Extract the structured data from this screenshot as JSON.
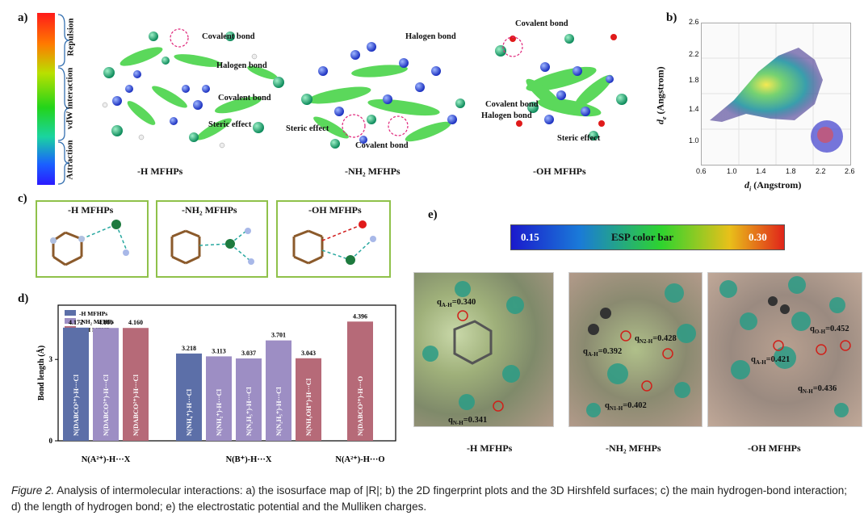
{
  "panel_labels": {
    "a": "a)",
    "b": "b)",
    "c": "c)",
    "d": "d)",
    "e": "e)"
  },
  "panel_a": {
    "colorbar_labels": [
      "Repulsion",
      "vdW interaction",
      "Attraction"
    ],
    "molecules": [
      {
        "title": "-H MFHPs",
        "annotations": [
          "Covalent bond",
          "Halogen bond",
          "Covalent bond",
          "Steric effect"
        ]
      },
      {
        "title": "-NH₂ MFHPs",
        "annotations": [
          "Halogen bond",
          "Steric effect",
          "Covalent bond"
        ]
      },
      {
        "title": "-OH MFHPs",
        "annotations": [
          "Covalent bond",
          "Covalent bond",
          "Halogen bond",
          "Steric effect"
        ]
      }
    ]
  },
  "panel_b": {
    "xlabel": "d",
    "xlabel_sub": "i",
    "xlabel_unit": "(Angstrom)",
    "ylabel": "d",
    "ylabel_sub": "e",
    "ylabel_unit": "(Angstrom)",
    "x_ticks": [
      "0.6",
      "1.0",
      "1.4",
      "1.8",
      "2.2",
      "2.6"
    ],
    "y_ticks": [
      "1.0",
      "1.4",
      "1.8",
      "2.2",
      "2.6"
    ]
  },
  "panel_c": {
    "titles": [
      "-H MFHPs",
      "-NH₂ MFHPs",
      "-OH MFHPs"
    ]
  },
  "chart_data": {
    "type": "bar",
    "ylabel": "Bond length (Å)",
    "ylim": [
      0,
      5
    ],
    "y_ticks": [
      "0",
      "3"
    ],
    "series": [
      {
        "name": "-H MFHPs",
        "color": "#5c6fa8"
      },
      {
        "name": "-NH₂ MFHPs",
        "color": "#9d8ec4"
      },
      {
        "name": "-OH MFHPs",
        "color": "#b66a78"
      }
    ],
    "groups": [
      {
        "label": "N(A²⁺)-H···X",
        "bars": [
          {
            "series": 0,
            "value": 4.172,
            "value_label": "4.172",
            "text": "N(DABCO²⁺)-H···Cl"
          },
          {
            "series": 1,
            "value": 4.16,
            "value_label": "4.160",
            "text": "N(DABCO²⁺)-H···Cl"
          },
          {
            "series": 2,
            "value": 4.16,
            "value_label": "4.160",
            "text": "N(DABCO²⁺)-H···Cl"
          }
        ]
      },
      {
        "label": "N(B⁺)-H···X",
        "bars": [
          {
            "series": 0,
            "value": 3.218,
            "value_label": "3.218",
            "text": "N(NH₄⁺)-H···Cl"
          },
          {
            "series": 1,
            "value": 3.113,
            "value_label": "3.113",
            "text": "N(NH₂⁺)-H···Cl"
          },
          {
            "series": 1,
            "value": 3.037,
            "value_label": "3.037",
            "text": "N(N₂H₅⁺)-H···Cl"
          },
          {
            "series": 1,
            "value": 3.701,
            "value_label": "3.701",
            "text": "N(N₂H₅⁺)-H···Cl"
          },
          {
            "series": 2,
            "value": 3.043,
            "value_label": "3.043",
            "text": "N(NH₃OH⁺)-H···Cl"
          }
        ]
      },
      {
        "label": "N(A²⁺)-H···O",
        "bars": [
          {
            "series": 2,
            "value": 4.396,
            "value_label": "4.396",
            "text": "N(DABCO²⁺)-H···O"
          }
        ]
      }
    ]
  },
  "panel_e": {
    "colorbar_min": "0.15",
    "colorbar_max": "0.30",
    "colorbar_label": "ESP color bar",
    "panels": [
      {
        "title": "-H MFHPs",
        "labels": [
          {
            "q": "q",
            "sub": "A-H",
            "val": "=0.340"
          },
          {
            "q": "q",
            "sub": "N-H",
            "val": "=0.341"
          }
        ]
      },
      {
        "title": "-NH₂ MFHPs",
        "labels": [
          {
            "q": "q",
            "sub": "N2-H",
            "val": "=0.428"
          },
          {
            "q": "q",
            "sub": "A-H",
            "val": "=0.392"
          },
          {
            "q": "q",
            "sub": "N1-H",
            "val": "=0.402"
          }
        ]
      },
      {
        "title": "-OH MFHPs",
        "labels": [
          {
            "q": "q",
            "sub": "O-H",
            "val": "=0.452"
          },
          {
            "q": "q",
            "sub": "A-H",
            "val": "=0.421"
          },
          {
            "q": "q",
            "sub": "N-H",
            "val": "=0.436"
          }
        ]
      }
    ]
  },
  "caption": {
    "prefix": "Figure 2.",
    "text": " Analysis of intermolecular interactions: a) the isosurface map of |R|; b) the 2D fingerprint plots and the 3D Hirshfeld surfaces; c) the main hydrogen-bond interaction; d) the length of hydrogen bond; e) the electrostatic potential and the Mulliken charges."
  }
}
